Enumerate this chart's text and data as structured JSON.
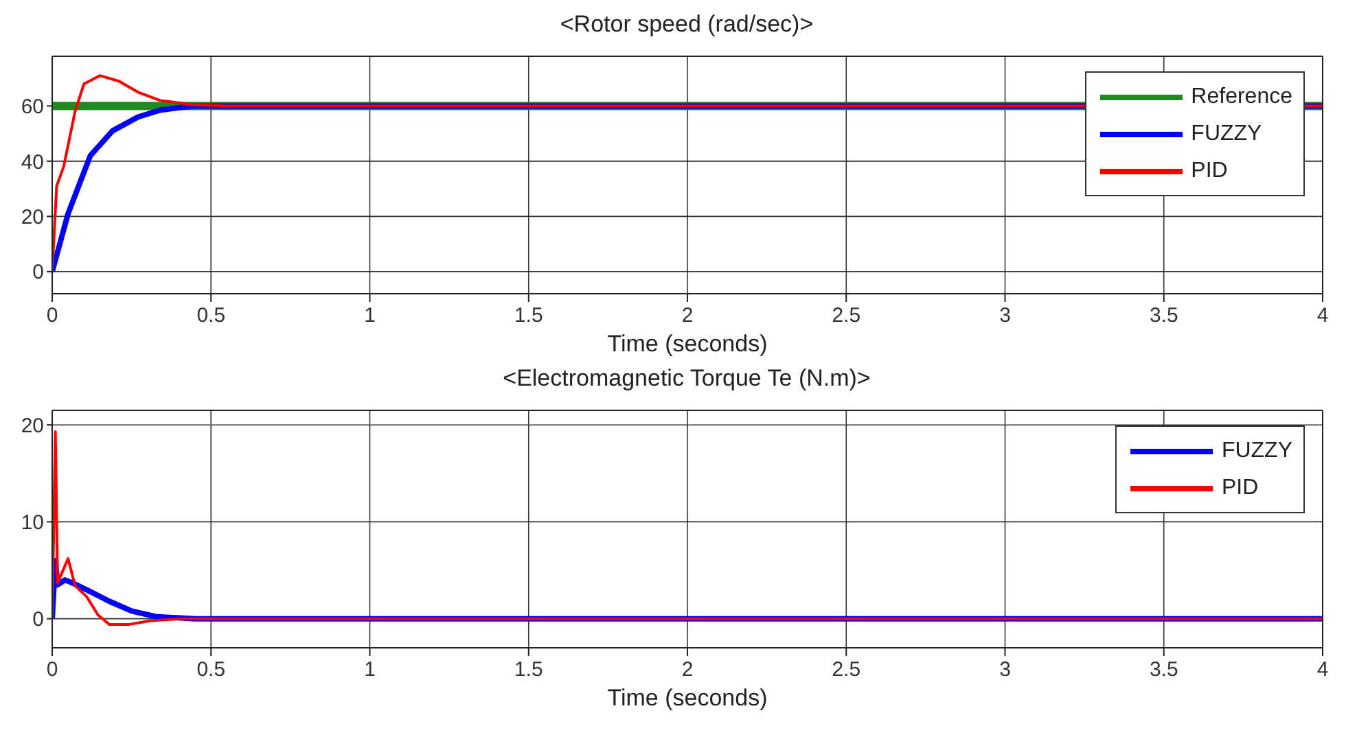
{
  "chart_data": [
    {
      "type": "line",
      "title": "<Rotor speed (rad/sec)>",
      "xlabel": "Time (seconds)",
      "xlim": [
        0,
        4
      ],
      "xticks": [
        0,
        0.5,
        1,
        1.5,
        2,
        2.5,
        3,
        3.5,
        4
      ],
      "ylim": [
        -8,
        78
      ],
      "yticks": [
        0,
        20,
        40,
        60
      ],
      "grid": true,
      "legend": "top right",
      "marker": "none",
      "line_style": "solid",
      "series": [
        {
          "name": "Reference",
          "color": "#1f8a1f",
          "x": [
            0,
            4
          ],
          "values": [
            60,
            60
          ]
        },
        {
          "name": "FUZZY",
          "color": "#0000ff",
          "x": [
            0,
            0.05,
            0.12,
            0.19,
            0.27,
            0.34,
            0.44,
            0.6,
            4
          ],
          "values": [
            0,
            21,
            42,
            51,
            56,
            58.5,
            60,
            60,
            60
          ]
        },
        {
          "name": "PID",
          "color": "#ff0000",
          "x": [
            0,
            0.014,
            0.036,
            0.072,
            0.1,
            0.15,
            0.21,
            0.27,
            0.34,
            0.44,
            0.55,
            4
          ],
          "values": [
            0,
            31,
            38,
            58,
            68,
            71,
            69,
            65,
            62,
            60.5,
            60,
            60
          ]
        }
      ]
    },
    {
      "type": "line",
      "title": "<Electromagnetic Torque Te (N.m)>",
      "xlabel": "Time (seconds)",
      "xlim": [
        0,
        4
      ],
      "xticks": [
        0,
        0.5,
        1,
        1.5,
        2,
        2.5,
        3,
        3.5,
        4
      ],
      "ylim": [
        -3,
        21.5
      ],
      "yticks": [
        0,
        10,
        20
      ],
      "grid": true,
      "legend": "top right",
      "marker": "none",
      "line_style": "solid",
      "series": [
        {
          "name": "FUZZY",
          "color": "#0000ff",
          "x": [
            0,
            0.01,
            0.017,
            0.04,
            0.07,
            0.12,
            0.18,
            0.25,
            0.33,
            0.45,
            4
          ],
          "values": [
            0,
            6,
            3.5,
            4,
            3.6,
            2.8,
            1.8,
            0.8,
            0.2,
            0,
            0
          ]
        },
        {
          "name": "PID",
          "color": "#ff0000",
          "x": [
            0,
            0.01,
            0.017,
            0.05,
            0.072,
            0.108,
            0.144,
            0.18,
            0.24,
            0.31,
            0.41,
            4
          ],
          "values": [
            0,
            19.3,
            3.7,
            6.2,
            3.4,
            2.3,
            0.4,
            -0.6,
            -0.6,
            -0.2,
            0,
            0
          ]
        }
      ]
    }
  ]
}
